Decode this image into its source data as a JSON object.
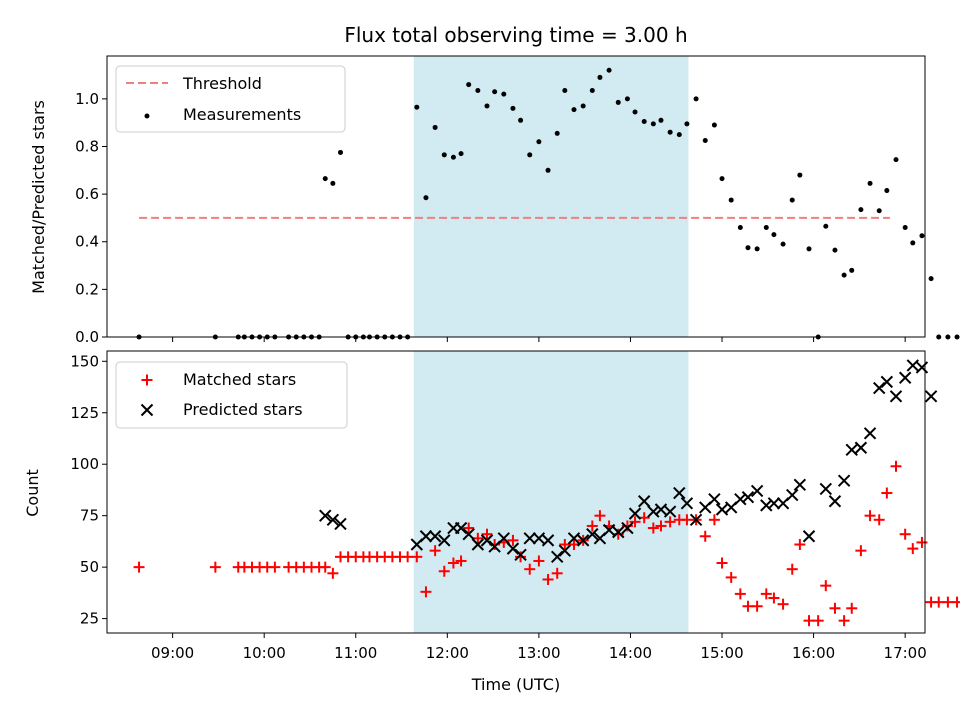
{
  "colors": {
    "threshold": "#f08080",
    "measurement": "#000000",
    "matched": "#ff0000",
    "predicted": "#000000",
    "window_shade": "#add8e6"
  },
  "chart_data": [
    {
      "type": "scatter",
      "title": "Flux total observing time = 3.00 h",
      "xlabel": "",
      "ylabel": "Matched/Predicted stars",
      "xlim": [
        "08:17",
        "17:13"
      ],
      "ylim": [
        0,
        1.18
      ],
      "ytick_labels": [
        "0.0",
        "0.2",
        "0.4",
        "0.6",
        "0.8",
        "1.0"
      ],
      "yticks": [
        0,
        0.2,
        0.4,
        0.6,
        0.8,
        1.0
      ],
      "shaded_span": [
        "11:38",
        "14:38"
      ],
      "legend": {
        "placement": "top-left",
        "entries": [
          "Threshold",
          "Measurements"
        ]
      },
      "series": [
        {
          "name": "Threshold",
          "style": "dashed-line",
          "points": [
            [
              "08:38",
              0.5
            ],
            [
              "16:50",
              0.5
            ]
          ]
        },
        {
          "name": "Measurements",
          "style": "dot",
          "points": [
            [
              "08:38",
              0.0
            ],
            [
              "09:28",
              0.0
            ],
            [
              "09:43",
              0.0
            ],
            [
              "09:47",
              0.0
            ],
            [
              "09:52",
              0.0
            ],
            [
              "09:57",
              0.0
            ],
            [
              "10:02",
              0.0
            ],
            [
              "10:07",
              0.0
            ],
            [
              "10:16",
              0.0
            ],
            [
              "10:21",
              0.0
            ],
            [
              "10:26",
              0.0
            ],
            [
              "10:31",
              0.0
            ],
            [
              "10:36",
              0.0
            ],
            [
              "10:40",
              0.665
            ],
            [
              "10:45",
              0.645
            ],
            [
              "10:50",
              0.775
            ],
            [
              "10:55",
              0.0
            ],
            [
              "11:00",
              0.0
            ],
            [
              "11:05",
              0.0
            ],
            [
              "11:09",
              0.0
            ],
            [
              "11:14",
              0.0
            ],
            [
              "11:19",
              0.0
            ],
            [
              "11:24",
              0.0
            ],
            [
              "11:29",
              0.0
            ],
            [
              "11:34",
              0.0
            ],
            [
              "11:40",
              0.965
            ],
            [
              "11:46",
              0.585
            ],
            [
              "11:52",
              0.88
            ],
            [
              "11:58",
              0.765
            ],
            [
              "12:04",
              0.755
            ],
            [
              "12:09",
              0.77
            ],
            [
              "12:14",
              1.06
            ],
            [
              "12:20",
              1.035
            ],
            [
              "12:26",
              0.97
            ],
            [
              "12:31",
              1.03
            ],
            [
              "12:37",
              1.02
            ],
            [
              "12:43",
              0.96
            ],
            [
              "12:48",
              0.91
            ],
            [
              "12:54",
              0.765
            ],
            [
              "13:00",
              0.82
            ],
            [
              "13:06",
              0.7
            ],
            [
              "13:12",
              0.855
            ],
            [
              "13:17",
              1.035
            ],
            [
              "13:23",
              0.955
            ],
            [
              "13:29",
              0.97
            ],
            [
              "13:35",
              1.035
            ],
            [
              "13:40",
              1.09
            ],
            [
              "13:46",
              1.12
            ],
            [
              "13:52",
              0.985
            ],
            [
              "13:58",
              1.0
            ],
            [
              "14:03",
              0.945
            ],
            [
              "14:09",
              0.905
            ],
            [
              "14:15",
              0.895
            ],
            [
              "14:20",
              0.91
            ],
            [
              "14:26",
              0.86
            ],
            [
              "14:32",
              0.85
            ],
            [
              "14:37",
              0.895
            ],
            [
              "14:43",
              1.0
            ],
            [
              "14:49",
              0.825
            ],
            [
              "14:55",
              0.89
            ],
            [
              "15:00",
              0.665
            ],
            [
              "15:06",
              0.575
            ],
            [
              "15:12",
              0.46
            ],
            [
              "15:17",
              0.375
            ],
            [
              "15:23",
              0.37
            ],
            [
              "15:29",
              0.46
            ],
            [
              "15:34",
              0.43
            ],
            [
              "15:40",
              0.39
            ],
            [
              "15:46",
              0.575
            ],
            [
              "15:51",
              0.68
            ],
            [
              "15:57",
              0.37
            ],
            [
              "16:03",
              0.0
            ],
            [
              "16:08",
              0.465
            ],
            [
              "16:14",
              0.365
            ],
            [
              "16:20",
              0.26
            ],
            [
              "16:25",
              0.28
            ],
            [
              "16:31",
              0.535
            ],
            [
              "16:37",
              0.645
            ],
            [
              "16:43",
              0.53
            ],
            [
              "16:48",
              0.615
            ],
            [
              "16:54",
              0.745
            ],
            [
              "17:00",
              0.46
            ],
            [
              "17:05",
              0.395
            ],
            [
              "17:11",
              0.425
            ],
            [
              "17:17",
              0.245
            ],
            [
              "17:22",
              0.0
            ],
            [
              "17:28",
              0.0
            ],
            [
              "17:34",
              0.0
            ]
          ]
        }
      ]
    },
    {
      "type": "scatter",
      "title": "",
      "xlabel": "Time (UTC)",
      "ylabel": "Count",
      "xlim": [
        "08:17",
        "17:13"
      ],
      "ylim": [
        18,
        155
      ],
      "xtick_labels": [
        "09:00",
        "10:00",
        "11:00",
        "12:00",
        "13:00",
        "14:00",
        "15:00",
        "16:00",
        "17:00"
      ],
      "ytick_labels": [
        "25",
        "50",
        "75",
        "100",
        "125",
        "150"
      ],
      "yticks": [
        25,
        50,
        75,
        100,
        125,
        150
      ],
      "shaded_span": [
        "11:38",
        "14:38"
      ],
      "legend": {
        "placement": "top-left",
        "entries": [
          "Matched stars",
          "Predicted stars"
        ]
      },
      "series": [
        {
          "name": "Matched stars",
          "marker": "plus",
          "points": [
            [
              "08:38",
              50
            ],
            [
              "09:28",
              50
            ],
            [
              "09:43",
              50
            ],
            [
              "09:47",
              50
            ],
            [
              "09:52",
              50
            ],
            [
              "09:57",
              50
            ],
            [
              "10:02",
              50
            ],
            [
              "10:07",
              50
            ],
            [
              "10:16",
              50
            ],
            [
              "10:21",
              50
            ],
            [
              "10:26",
              50
            ],
            [
              "10:31",
              50
            ],
            [
              "10:36",
              50
            ],
            [
              "10:40",
              50
            ],
            [
              "10:45",
              47
            ],
            [
              "10:50",
              55
            ],
            [
              "10:55",
              55
            ],
            [
              "11:00",
              55
            ],
            [
              "11:05",
              55
            ],
            [
              "11:09",
              55
            ],
            [
              "11:14",
              55
            ],
            [
              "11:19",
              55
            ],
            [
              "11:24",
              55
            ],
            [
              "11:29",
              55
            ],
            [
              "11:34",
              55
            ],
            [
              "11:40",
              55
            ],
            [
              "11:46",
              38
            ],
            [
              "11:52",
              58
            ],
            [
              "11:58",
              48
            ],
            [
              "12:04",
              52
            ],
            [
              "12:09",
              53
            ],
            [
              "12:14",
              69
            ],
            [
              "12:20",
              64
            ],
            [
              "12:26",
              66
            ],
            [
              "12:31",
              61
            ],
            [
              "12:37",
              62
            ],
            [
              "12:43",
              63
            ],
            [
              "12:48",
              55
            ],
            [
              "12:54",
              49
            ],
            [
              "13:00",
              53
            ],
            [
              "13:06",
              44
            ],
            [
              "13:12",
              47
            ],
            [
              "13:17",
              61
            ],
            [
              "13:23",
              61
            ],
            [
              "13:29",
              63
            ],
            [
              "13:35",
              70
            ],
            [
              "13:40",
              75
            ],
            [
              "13:46",
              70
            ],
            [
              "13:52",
              66
            ],
            [
              "13:58",
              70
            ],
            [
              "14:03",
              72
            ],
            [
              "14:09",
              74
            ],
            [
              "14:15",
              69
            ],
            [
              "14:20",
              70
            ],
            [
              "14:26",
              72
            ],
            [
              "14:32",
              73
            ],
            [
              "14:37",
              73
            ],
            [
              "14:43",
              73
            ],
            [
              "14:49",
              65
            ],
            [
              "14:55",
              73
            ],
            [
              "15:00",
              52
            ],
            [
              "15:06",
              45
            ],
            [
              "15:12",
              37
            ],
            [
              "15:17",
              31
            ],
            [
              "15:23",
              31
            ],
            [
              "15:29",
              37
            ],
            [
              "15:34",
              35
            ],
            [
              "15:40",
              32
            ],
            [
              "15:46",
              49
            ],
            [
              "15:51",
              61
            ],
            [
              "15:57",
              24
            ],
            [
              "16:03",
              24
            ],
            [
              "16:08",
              41
            ],
            [
              "16:14",
              30
            ],
            [
              "16:20",
              24
            ],
            [
              "16:25",
              30
            ],
            [
              "16:31",
              58
            ],
            [
              "16:37",
              75
            ],
            [
              "16:43",
              73
            ],
            [
              "16:48",
              86
            ],
            [
              "16:54",
              99
            ],
            [
              "17:00",
              66
            ],
            [
              "17:05",
              59
            ],
            [
              "17:11",
              62
            ],
            [
              "17:17",
              33
            ],
            [
              "17:22",
              33
            ],
            [
              "17:28",
              33
            ],
            [
              "17:34",
              33
            ]
          ]
        },
        {
          "name": "Predicted stars",
          "marker": "x",
          "points": [
            [
              "10:40",
              75
            ],
            [
              "10:45",
              73
            ],
            [
              "10:50",
              71
            ],
            [
              "11:40",
              61
            ],
            [
              "11:46",
              65
            ],
            [
              "11:52",
              65
            ],
            [
              "11:58",
              63
            ],
            [
              "12:04",
              69
            ],
            [
              "12:09",
              69
            ],
            [
              "12:14",
              66
            ],
            [
              "12:20",
              61
            ],
            [
              "12:26",
              63
            ],
            [
              "12:31",
              60
            ],
            [
              "12:37",
              64
            ],
            [
              "12:43",
              59
            ],
            [
              "12:48",
              56
            ],
            [
              "12:54",
              64
            ],
            [
              "13:00",
              64
            ],
            [
              "13:06",
              63
            ],
            [
              "13:12",
              55
            ],
            [
              "13:17",
              58
            ],
            [
              "13:23",
              64
            ],
            [
              "13:29",
              63
            ],
            [
              "13:35",
              66
            ],
            [
              "13:40",
              64
            ],
            [
              "13:46",
              68
            ],
            [
              "13:52",
              67
            ],
            [
              "13:58",
              69
            ],
            [
              "14:03",
              76
            ],
            [
              "14:09",
              82
            ],
            [
              "14:15",
              77
            ],
            [
              "14:20",
              78
            ],
            [
              "14:26",
              77
            ],
            [
              "14:32",
              86
            ],
            [
              "14:37",
              81
            ],
            [
              "14:43",
              73
            ],
            [
              "14:49",
              79
            ],
            [
              "14:55",
              83
            ],
            [
              "15:00",
              78
            ],
            [
              "15:06",
              79
            ],
            [
              "15:12",
              83
            ],
            [
              "15:17",
              84
            ],
            [
              "15:23",
              87
            ],
            [
              "15:29",
              80
            ],
            [
              "15:34",
              81
            ],
            [
              "15:40",
              81
            ],
            [
              "15:46",
              85
            ],
            [
              "15:51",
              90
            ],
            [
              "15:57",
              65
            ],
            [
              "16:08",
              88
            ],
            [
              "16:14",
              82
            ],
            [
              "16:20",
              92
            ],
            [
              "16:25",
              107
            ],
            [
              "16:31",
              108
            ],
            [
              "16:37",
              115
            ],
            [
              "16:43",
              137
            ],
            [
              "16:48",
              140
            ],
            [
              "16:54",
              133
            ],
            [
              "17:00",
              142
            ],
            [
              "17:05",
              148
            ],
            [
              "17:11",
              147
            ],
            [
              "17:17",
              133
            ]
          ]
        }
      ]
    }
  ]
}
